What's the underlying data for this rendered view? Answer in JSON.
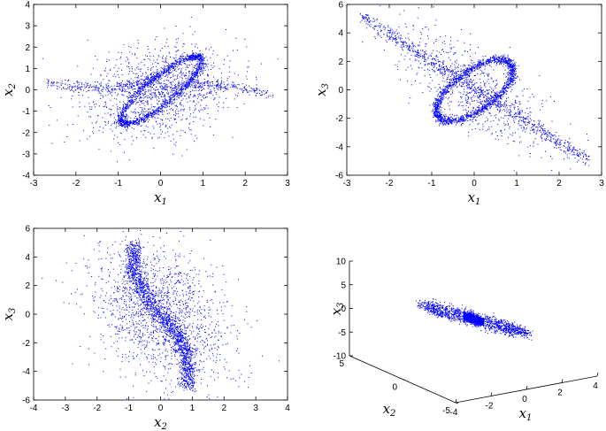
{
  "chart_data": [
    {
      "type": "scatter",
      "title": "",
      "xlabel": "x",
      "xlabel_sub": "1",
      "ylabel": "x",
      "ylabel_sub": "2",
      "xlim": [
        -3,
        3
      ],
      "ylim": [
        -4,
        4
      ],
      "xticks": [
        -3,
        -2,
        -1,
        0,
        1,
        2,
        3
      ],
      "yticks": [
        -4,
        -3,
        -2,
        -1,
        0,
        1,
        2,
        3,
        4
      ],
      "marker_color": "#0000ff",
      "grid": false,
      "description_points": "dense double-loop attractor projection, loop x1 in [-1,1], x2 in [-1.6,1.6], diffuse cloud spanning x1 -2.7..2.7"
    },
    {
      "type": "scatter",
      "title": "",
      "xlabel": "x",
      "xlabel_sub": "1",
      "ylabel": "x",
      "ylabel_sub": "3",
      "xlim": [
        -3,
        3
      ],
      "ylim": [
        -6,
        6
      ],
      "xticks": [
        -3,
        -2,
        -1,
        0,
        1,
        2,
        3
      ],
      "yticks": [
        -6,
        -4,
        -2,
        0,
        2,
        4,
        6
      ],
      "marker_color": "#0000ff",
      "grid": false
    },
    {
      "type": "scatter",
      "title": "",
      "xlabel": "x",
      "xlabel_sub": "2",
      "ylabel": "x",
      "ylabel_sub": "3",
      "xlim": [
        -4,
        4
      ],
      "ylim": [
        -6,
        6
      ],
      "xticks": [
        -4,
        -3,
        -2,
        -1,
        0,
        1,
        2,
        3,
        4
      ],
      "yticks": [
        -6,
        -4,
        -2,
        0,
        2,
        4,
        6
      ],
      "marker_color": "#0000ff",
      "grid": false
    },
    {
      "type": "scatter",
      "title": "",
      "xlabel": "x",
      "xlabel_sub": "1",
      "ylabel": "x",
      "ylabel_sub": "2",
      "zlabel": "x",
      "zlabel_sub": "3",
      "xlim": [
        -4,
        4
      ],
      "ylim": [
        -5,
        5
      ],
      "zlim": [
        -10,
        10
      ],
      "xticks": [
        -4,
        -2,
        0,
        2,
        4
      ],
      "yticks": [
        -5,
        0,
        5
      ],
      "zticks": [
        -10,
        -5,
        0,
        5,
        10
      ],
      "marker_color": "#0000ff",
      "grid": false
    }
  ]
}
